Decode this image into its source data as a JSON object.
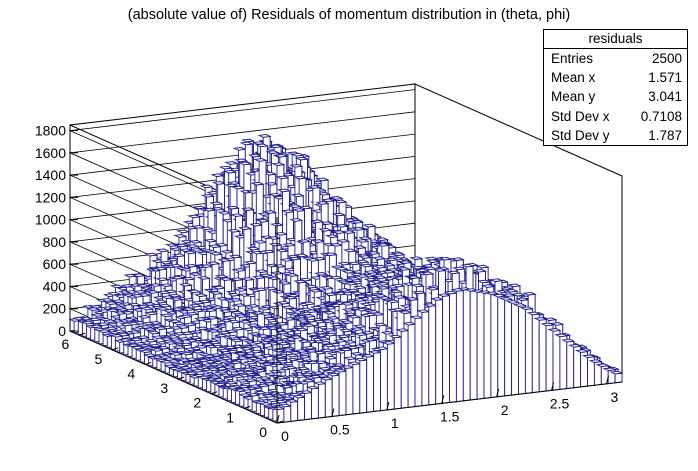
{
  "title": "(absolute value of) Residuals of momentum distribution in (theta, phi)",
  "stats": {
    "name": "residuals",
    "rows": [
      {
        "label": "Entries",
        "value": "2500"
      },
      {
        "label": "Mean x",
        "value": "1.571"
      },
      {
        "label": "Mean y",
        "value": "3.041"
      },
      {
        "label": "Std Dev x",
        "value": "0.7108"
      },
      {
        "label": "Std Dev y",
        "value": "1.787"
      }
    ]
  },
  "colors": {
    "bar_outline": "#1a1a8c",
    "bar_fill": "#ffffff",
    "axis": "#000000",
    "grid": "#000000"
  },
  "chart_data": {
    "type": "lego3d",
    "title": "(absolute value of) Residuals of momentum distribution in (theta, phi)",
    "x_range": [
      0,
      3.1416
    ],
    "y_range": [
      0,
      6.2832
    ],
    "z_range": [
      0,
      1850
    ],
    "nbins_x": 50,
    "nbins_y": 50,
    "x_ticks": [
      {
        "v": 0,
        "label": "0"
      },
      {
        "v": 0.5,
        "label": "0.5"
      },
      {
        "v": 1,
        "label": "1"
      },
      {
        "v": 1.5,
        "label": "1.5"
      },
      {
        "v": 2,
        "label": "2"
      },
      {
        "v": 2.5,
        "label": "2.5"
      },
      {
        "v": 3,
        "label": "3"
      }
    ],
    "y_ticks": [
      {
        "v": 0,
        "label": "0"
      },
      {
        "v": 1,
        "label": "1"
      },
      {
        "v": 2,
        "label": "2"
      },
      {
        "v": 3,
        "label": "3"
      },
      {
        "v": 4,
        "label": "4"
      },
      {
        "v": 5,
        "label": "5"
      },
      {
        "v": 6,
        "label": "6"
      }
    ],
    "z_ticks": [
      {
        "v": 0,
        "label": "0"
      },
      {
        "v": 200,
        "label": "200"
      },
      {
        "v": 400,
        "label": "400"
      },
      {
        "v": 600,
        "label": "600"
      },
      {
        "v": 800,
        "label": "800"
      },
      {
        "v": 1000,
        "label": "1000"
      },
      {
        "v": 1200,
        "label": "1200"
      },
      {
        "v": 1400,
        "label": "1400"
      },
      {
        "v": 1600,
        "label": "1600"
      },
      {
        "v": 1800,
        "label": "1800"
      }
    ],
    "front_profile": {
      "description_free_values": true,
      "x": [
        0.06,
        0.5,
        1.0,
        1.3,
        1.5,
        1.7,
        2.0,
        2.3,
        2.6,
        2.9,
        3.1
      ],
      "z": [
        120,
        350,
        560,
        800,
        950,
        1000,
        920,
        750,
        480,
        220,
        80
      ]
    },
    "peak_height": 1850,
    "grid": true
  }
}
